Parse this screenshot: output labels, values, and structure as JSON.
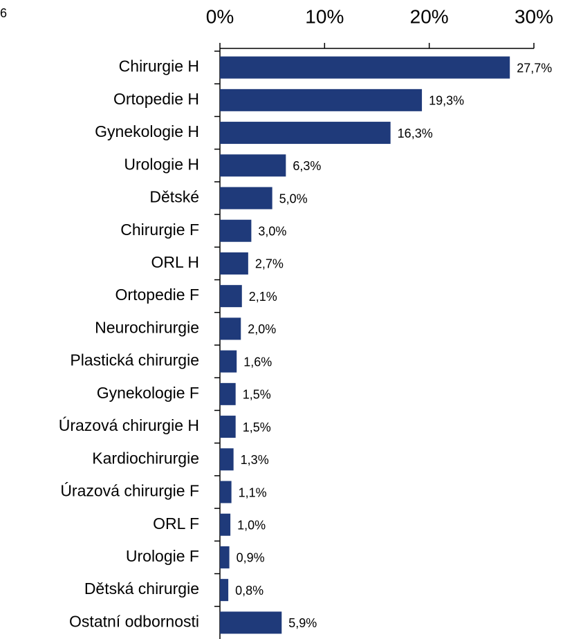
{
  "chart_data": {
    "type": "bar",
    "orientation": "horizontal",
    "annotation": "6",
    "categories": [
      "Chirurgie H",
      "Ortopedie H",
      "Gynekologie H",
      "Urologie H",
      "Dětské",
      "Chirurgie F",
      "ORL H",
      "Ortopedie F",
      "Neurochirurgie",
      "Plastická chirurgie",
      "Gynekologie F",
      "Úrazová chirurgie H",
      "Kardiochirurgie",
      "Úrazová chirurgie F",
      "ORL F",
      "Urologie F",
      "Dětská chirurgie",
      "Ostatní odbornosti"
    ],
    "values": [
      27.7,
      19.3,
      16.3,
      6.3,
      5.0,
      3.0,
      2.7,
      2.1,
      2.0,
      1.6,
      1.5,
      1.5,
      1.3,
      1.1,
      1.0,
      0.9,
      0.8,
      5.9
    ],
    "value_labels": [
      "27,7%",
      "19,3%",
      "16,3%",
      "6,3%",
      "5,0%",
      "3,0%",
      "2,7%",
      "2,1%",
      "2,0%",
      "1,6%",
      "1,5%",
      "1,5%",
      "1,3%",
      "1,1%",
      "1,0%",
      "0,9%",
      "0,8%",
      "5,9%"
    ],
    "color": "#1f3a7a",
    "xlim": [
      0,
      30
    ],
    "xticks": [
      {
        "value": 0,
        "label": "0%"
      },
      {
        "value": 10,
        "label": "10%"
      },
      {
        "value": 20,
        "label": "20%"
      },
      {
        "value": 30,
        "label": "30%"
      }
    ]
  }
}
